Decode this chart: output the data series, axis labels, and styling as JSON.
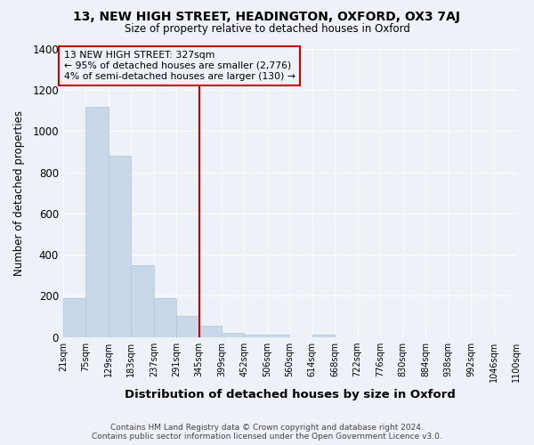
{
  "title": "13, NEW HIGH STREET, HEADINGTON, OXFORD, OX3 7AJ",
  "subtitle": "Size of property relative to detached houses in Oxford",
  "xlabel": "Distribution of detached houses by size in Oxford",
  "ylabel": "Number of detached properties",
  "bar_color": "#c8d8e8",
  "bar_edgecolor": "#b0c4d8",
  "background_color": "#edf2f8",
  "grid_color": "#ffffff",
  "annotation_box_color": "#cc0000",
  "vline_color": "#cc0000",
  "vline_x": 345,
  "bin_edges": [
    21,
    75,
    129,
    183,
    237,
    291,
    345,
    399,
    452,
    506,
    560,
    614,
    668,
    722,
    776,
    830,
    884,
    938,
    992,
    1046,
    1100
  ],
  "bar_heights": [
    190,
    1120,
    880,
    350,
    190,
    100,
    55,
    20,
    12,
    10,
    0,
    12,
    0,
    0,
    0,
    0,
    0,
    0,
    0,
    0
  ],
  "tick_labels": [
    "21sqm",
    "75sqm",
    "129sqm",
    "183sqm",
    "237sqm",
    "291sqm",
    "345sqm",
    "399sqm",
    "452sqm",
    "506sqm",
    "560sqm",
    "614sqm",
    "668sqm",
    "722sqm",
    "776sqm",
    "830sqm",
    "884sqm",
    "938sqm",
    "992sqm",
    "1046sqm",
    "1100sqm"
  ],
  "annotation_line1": "13 NEW HIGH STREET: 327sqm",
  "annotation_line2": "← 95% of detached houses are smaller (2,776)",
  "annotation_line3": "4% of semi-detached houses are larger (130) →",
  "ylim": [
    0,
    1400
  ],
  "yticks": [
    0,
    200,
    400,
    600,
    800,
    1000,
    1200,
    1400
  ],
  "footer_line1": "Contains HM Land Registry data © Crown copyright and database right 2024.",
  "footer_line2": "Contains public sector information licensed under the Open Government Licence v3.0."
}
